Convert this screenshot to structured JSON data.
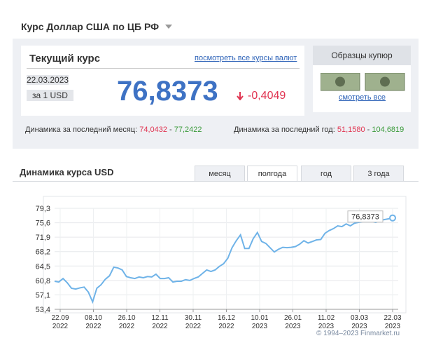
{
  "header": {
    "title": "Курс Доллар США по ЦБ РФ"
  },
  "current": {
    "title": "Текущий курс",
    "all_link": "посмотреть все курсы валют",
    "date": "22.03.2023",
    "unit": "за 1 USD",
    "rate": "76,8373",
    "change": "-0,4049"
  },
  "banknotes": {
    "title": "Образцы купюр",
    "link": "смотреть все"
  },
  "dynamics": {
    "month": {
      "label": "Динамика за последний месяц:",
      "min": "74,0432",
      "dash": "-",
      "max": "77,2422"
    },
    "year": {
      "label": "Динамика за последний год:",
      "min": "51,1580",
      "dash": "-",
      "max": "104,6819"
    }
  },
  "tabs": {
    "items": [
      "месяц",
      "полгода",
      "год",
      "3 года"
    ]
  },
  "footer": {
    "copyright": "© 1994–2023 Finmarket.ru"
  },
  "chart_data": {
    "type": "line",
    "title": "Динамика курса USD",
    "series": [
      {
        "name": "USD",
        "color": "#6fb3e8",
        "values": [
          60.6,
          60.4,
          61.3,
          60.2,
          58.8,
          58.6,
          58.9,
          59.1,
          57.8,
          55.3,
          58.8,
          59.7,
          61.1,
          62.0,
          64.2,
          64.0,
          63.5,
          61.8,
          61.5,
          61.3,
          61.7,
          61.5,
          61.8,
          61.7,
          62.4,
          61.3,
          61.3,
          61.5,
          60.4,
          60.6,
          60.6,
          61.0,
          60.8,
          61.3,
          61.7,
          62.6,
          63.5,
          63.1,
          63.5,
          64.4,
          65.1,
          66.5,
          69.2,
          71.0,
          72.5,
          69.0,
          69.0,
          71.5,
          73.1,
          70.8,
          70.3,
          69.2,
          68.1,
          68.8,
          69.3,
          69.2,
          69.3,
          69.5,
          70.1,
          71.0,
          70.4,
          70.8,
          71.2,
          71.3,
          72.9,
          73.6,
          74.1,
          74.8,
          74.6,
          75.3,
          74.8,
          75.5,
          75.7,
          75.9,
          76.0,
          76.0,
          75.7,
          76.2,
          76.4,
          76.6,
          76.8373
        ]
      }
    ],
    "annotation": "76,8373",
    "xtick_labels": [
      {
        "date": "22.09",
        "year": "2022"
      },
      {
        "date": "08.10",
        "year": "2022"
      },
      {
        "date": "26.10",
        "year": "2022"
      },
      {
        "date": "12.11",
        "year": "2022"
      },
      {
        "date": "30.11",
        "year": "2022"
      },
      {
        "date": "16.12",
        "year": "2022"
      },
      {
        "date": "10.01",
        "year": "2023"
      },
      {
        "date": "26.01",
        "year": "2023"
      },
      {
        "date": "11.02",
        "year": "2023"
      },
      {
        "date": "03.03",
        "year": "2023"
      },
      {
        "date": "22.03",
        "year": "2023"
      }
    ],
    "ylim": [
      53.4,
      79.3
    ],
    "yticks": [
      {
        "value": 53.4,
        "label": "53,4"
      },
      {
        "value": 57.1,
        "label": "57,1"
      },
      {
        "value": 60.8,
        "label": "60,8"
      },
      {
        "value": 64.5,
        "label": "64,5"
      },
      {
        "value": 68.2,
        "label": "68,2"
      },
      {
        "value": 71.9,
        "label": "71,9"
      },
      {
        "value": 75.6,
        "label": "75,6"
      },
      {
        "value": 79.3,
        "label": "79,3"
      }
    ],
    "grid": true
  }
}
